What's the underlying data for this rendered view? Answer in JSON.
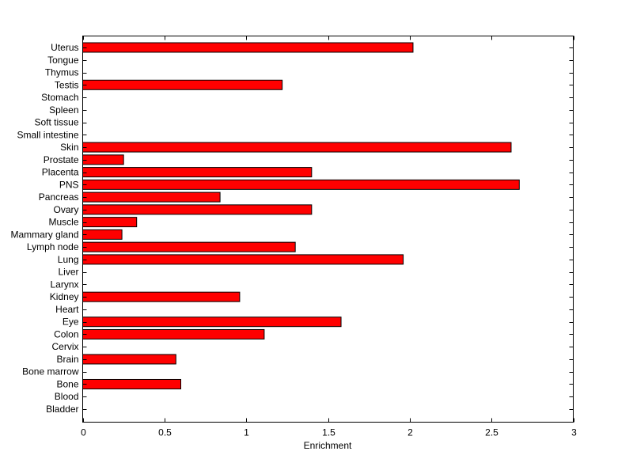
{
  "chart_data": {
    "type": "bar",
    "orientation": "horizontal",
    "title": "",
    "xlabel": "Enrichment",
    "ylabel": "",
    "xlim": [
      0,
      3
    ],
    "xticks": [
      "0",
      "0.5",
      "1",
      "1.5",
      "2",
      "2.5",
      "3"
    ],
    "grid": false,
    "bar_color": "#ff0000",
    "categories": [
      "Uterus",
      "Tongue",
      "Thymus",
      "Testis",
      "Stomach",
      "Spleen",
      "Soft tissue",
      "Small intestine",
      "Skin",
      "Prostate",
      "Placenta",
      "PNS",
      "Pancreas",
      "Ovary",
      "Muscle",
      "Mammary gland",
      "Lymph node",
      "Lung",
      "Liver",
      "Larynx",
      "Kidney",
      "Heart",
      "Eye",
      "Colon",
      "Cervix",
      "Brain",
      "Bone marrow",
      "Bone",
      "Blood",
      "Bladder"
    ],
    "values": [
      2.02,
      0,
      0,
      1.22,
      0,
      0,
      0,
      0,
      2.62,
      0.25,
      1.4,
      2.67,
      0.84,
      1.4,
      0.33,
      0.24,
      1.3,
      1.96,
      0,
      0,
      0.96,
      0,
      1.58,
      1.11,
      0,
      0.57,
      0,
      0.6,
      0,
      0
    ]
  }
}
